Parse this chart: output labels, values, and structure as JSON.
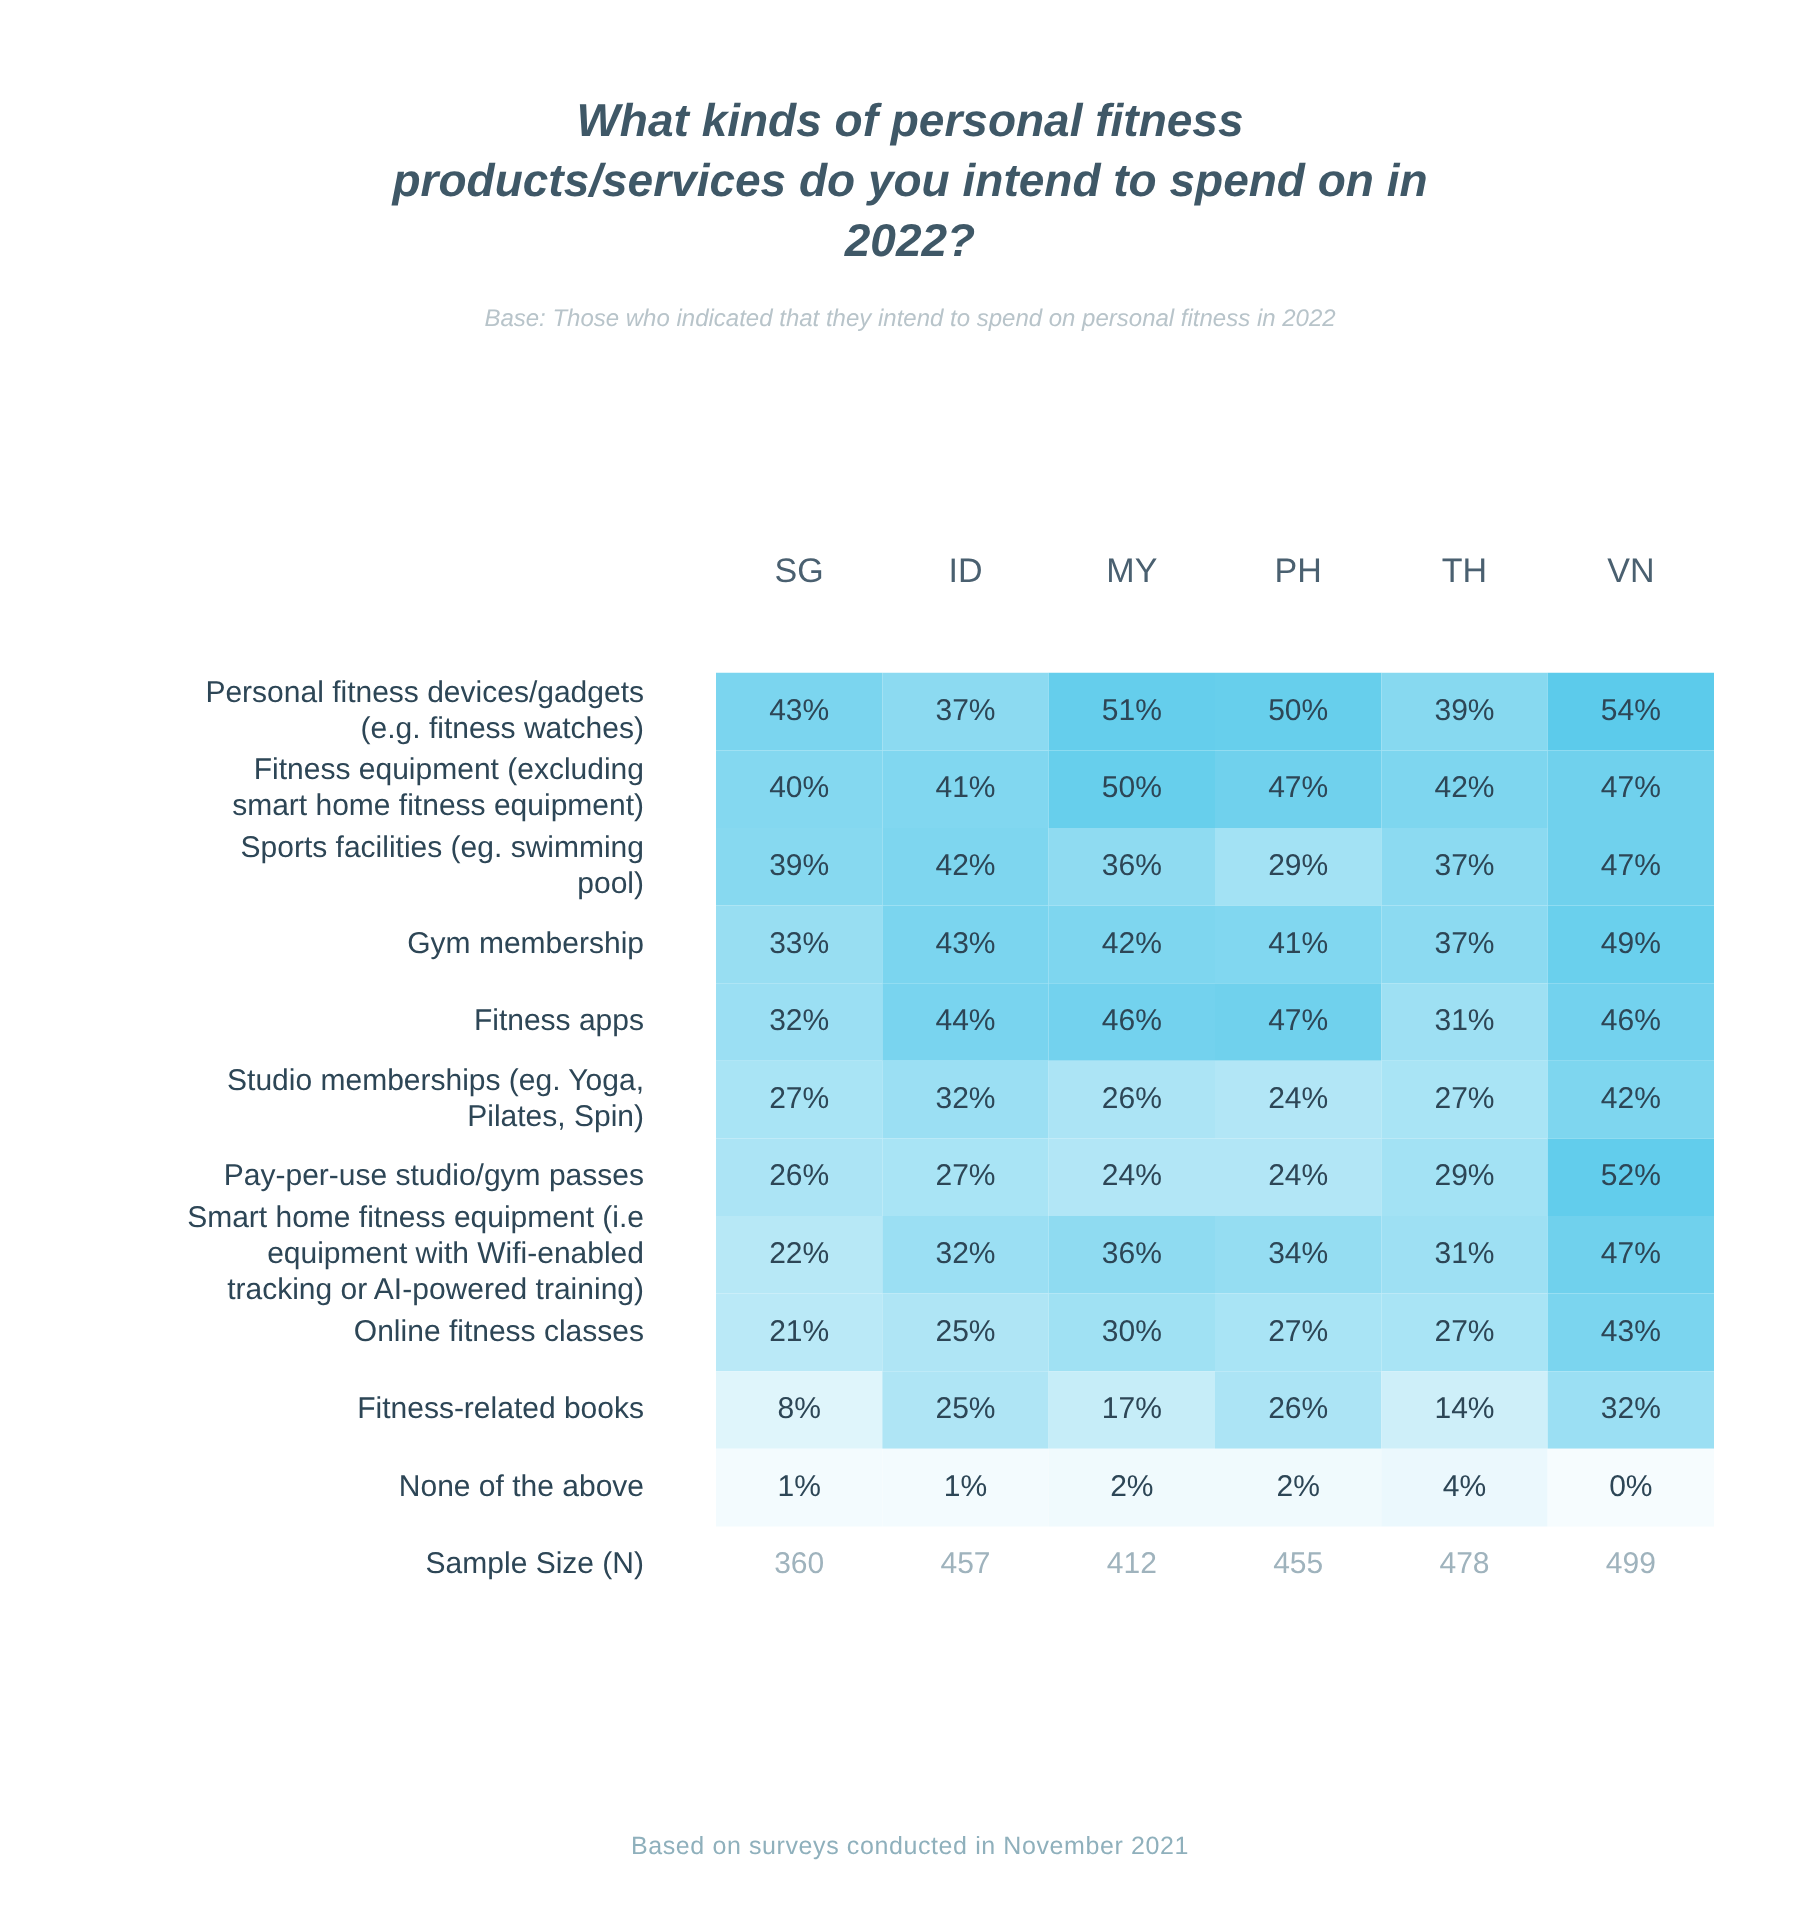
{
  "chart_data": {
    "type": "heatmap",
    "title": "What kinds of personal fitness products/services do you intend to spend on in 2022?",
    "subtitle": "Base: Those who indicated that they intend to spend on personal fitness in 2022",
    "categories": [
      "SG",
      "ID",
      "MY",
      "PH",
      "TH",
      "VN"
    ],
    "y_categories": [
      "Personal fitness devices/gadgets (e.g. fitness watches)",
      "Fitness equipment (excluding smart home fitness equipment)",
      "Sports facilities (eg. swimming pool)",
      "Gym membership",
      "Fitness apps",
      "Studio memberships (eg. Yoga, Pilates, Spin)",
      "Pay-per-use studio/gym passes",
      "Smart home fitness equipment (i.e equipment with Wifi-enabled tracking or AI-powered training)",
      "Online fitness classes",
      "Fitness-related books",
      "None of the above",
      "Sample Size (N)"
    ],
    "cells": [
      [
        43,
        37,
        51,
        50,
        39,
        54
      ],
      [
        40,
        41,
        50,
        47,
        42,
        47
      ],
      [
        39,
        42,
        36,
        29,
        37,
        47
      ],
      [
        33,
        43,
        42,
        41,
        37,
        49
      ],
      [
        32,
        44,
        46,
        47,
        31,
        46
      ],
      [
        27,
        32,
        26,
        24,
        27,
        42
      ],
      [
        26,
        27,
        24,
        24,
        29,
        52
      ],
      [
        22,
        32,
        36,
        34,
        31,
        47
      ],
      [
        21,
        25,
        30,
        27,
        27,
        43
      ],
      [
        8,
        25,
        17,
        26,
        14,
        32
      ],
      [
        1,
        1,
        2,
        2,
        4,
        0
      ],
      [
        null,
        null,
        null,
        null,
        null,
        null
      ]
    ],
    "cell_labels": [
      [
        "43%",
        "37%",
        "51%",
        "50%",
        "39%",
        "54%"
      ],
      [
        "40%",
        "41%",
        "50%",
        "47%",
        "42%",
        "47%"
      ],
      [
        "39%",
        "42%",
        "36%",
        "29%",
        "37%",
        "47%"
      ],
      [
        "33%",
        "43%",
        "42%",
        "41%",
        "37%",
        "49%"
      ],
      [
        "32%",
        "44%",
        "46%",
        "47%",
        "31%",
        "46%"
      ],
      [
        "27%",
        "32%",
        "26%",
        "24%",
        "27%",
        "42%"
      ],
      [
        "26%",
        "27%",
        "24%",
        "24%",
        "29%",
        "52%"
      ],
      [
        "22%",
        "32%",
        "36%",
        "34%",
        "31%",
        "47%"
      ],
      [
        "21%",
        "25%",
        "30%",
        "27%",
        "27%",
        "43%"
      ],
      [
        "8%",
        "25%",
        "17%",
        "26%",
        "14%",
        "32%"
      ],
      [
        "1%",
        "1%",
        "2%",
        "2%",
        "4%",
        "0%"
      ],
      [
        "360",
        "457",
        "412",
        "455",
        "478",
        "499"
      ]
    ],
    "annotations": [
      "Based on surveys conducted in November 2021"
    ]
  }
}
